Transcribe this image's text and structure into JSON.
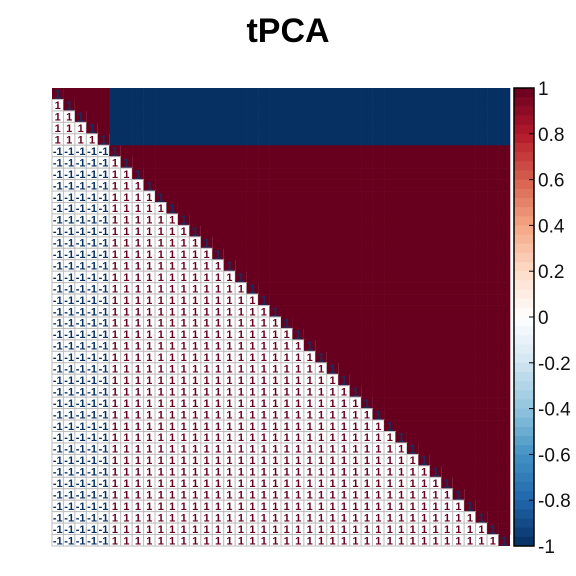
{
  "chart_data": {
    "type": "heatmap",
    "title": "tPCA",
    "variant": "correlation-matrix: upper triangle colored tiles, lower triangle numeric coefficients, diagonal labels",
    "block_structure": [
      {
        "name": "",
        "range": [
          1,
          5
        ]
      },
      {
        "name": "",
        "range": [
          6,
          40
        ]
      }
    ],
    "within_block_correlation": 1,
    "between_block_correlation": -1,
    "colorbar": {
      "ticks": [
        "1",
        "0.8",
        "0.6",
        "0.4",
        "0.2",
        "0",
        "-0.2",
        "-0.4",
        "-0.6",
        "-0.8",
        "-1"
      ],
      "range": [
        -1,
        1
      ],
      "colors": [
        "#67001F",
        "#B2182B",
        "#D6604D",
        "#F4A582",
        "#FDDBC7",
        "#FFFFFF",
        "#D1E5F0",
        "#92C5DE",
        "#4393C3",
        "#2166AC",
        "#053061"
      ]
    },
    "grid": true,
    "legend_placement": "right"
  }
}
